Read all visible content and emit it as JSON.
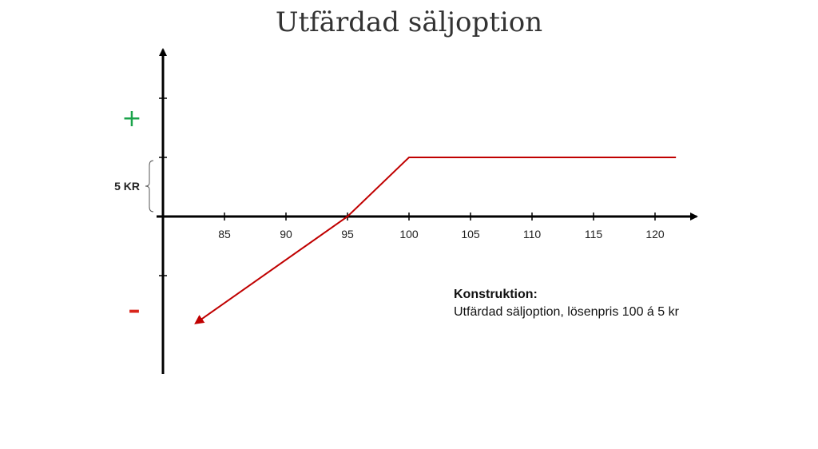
{
  "title": "Utfärdad säljoption",
  "chart_data": {
    "type": "line",
    "x_ticks": [
      85,
      90,
      95,
      100,
      105,
      110,
      115,
      120
    ],
    "xlim": [
      80,
      123
    ],
    "series": [
      {
        "points": [
          [
            82.7,
            -9
          ],
          [
            95,
            0
          ],
          [
            100,
            5
          ],
          [
            121.7,
            5
          ]
        ],
        "color": "#c00000"
      }
    ],
    "grid": false,
    "y_sign_labels": {
      "positive": "+",
      "negative": "–"
    },
    "y_sign_colors": {
      "positive": "#1aa34a",
      "negative": "#d9261c"
    },
    "brace_label": "5 KR",
    "brace_range": [
      0,
      5
    ]
  },
  "annotation": {
    "heading": "Konstruktion:",
    "text": "Utfärdad säljoption, lösenpris 100 á 5 kr"
  }
}
